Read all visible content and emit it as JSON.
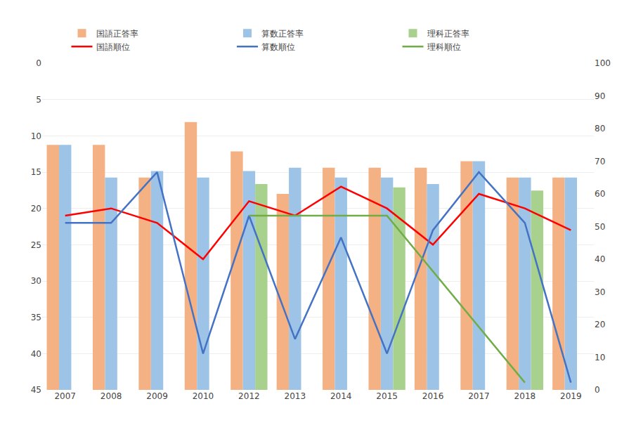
{
  "chart_data": {
    "type": "bar",
    "categories": [
      2007,
      2008,
      2009,
      2010,
      2012,
      2013,
      2014,
      2015,
      2016,
      2017,
      2018,
      2019
    ],
    "series": [
      {
        "name": "国語正答率",
        "type": "bar",
        "axis": "y2",
        "color": "#F4B183",
        "values": [
          75,
          75,
          65,
          82,
          73,
          60,
          68,
          68,
          68,
          70,
          65,
          65
        ]
      },
      {
        "name": "算数正答率",
        "type": "bar",
        "axis": "y2",
        "color": "#9DC3E6",
        "values": [
          75,
          65,
          67,
          65,
          67,
          68,
          65,
          65,
          63,
          70,
          65,
          65
        ]
      },
      {
        "name": "理科正答率",
        "type": "bar",
        "axis": "y2",
        "color": "#A9D18E",
        "values": [
          null,
          null,
          null,
          null,
          63,
          null,
          null,
          62,
          null,
          null,
          61,
          null
        ]
      },
      {
        "name": "国語順位",
        "type": "line",
        "color": "#FF0000",
        "values": [
          21,
          20,
          22,
          27,
          19,
          21,
          17,
          20,
          25,
          18,
          20,
          23
        ]
      },
      {
        "name": "算数順位",
        "type": "line",
        "color": "#4472C4",
        "values": [
          22,
          22,
          15,
          40,
          21,
          38,
          24,
          40,
          23,
          15,
          22,
          44
        ]
      },
      {
        "name": "理科順位",
        "type": "line",
        "color": "#70AD47",
        "values": [
          null,
          null,
          null,
          null,
          21,
          null,
          null,
          21,
          null,
          null,
          44,
          null
        ]
      }
    ],
    "ylim": [
      45,
      0
    ],
    "yticks": [
      0,
      5,
      10,
      15,
      20,
      25,
      30,
      35,
      40,
      45
    ],
    "y2lim": [
      0,
      100
    ],
    "y2ticks": [
      0,
      10,
      20,
      30,
      40,
      50,
      60,
      70,
      80,
      90,
      100
    ],
    "grid": true,
    "legend": "top"
  }
}
